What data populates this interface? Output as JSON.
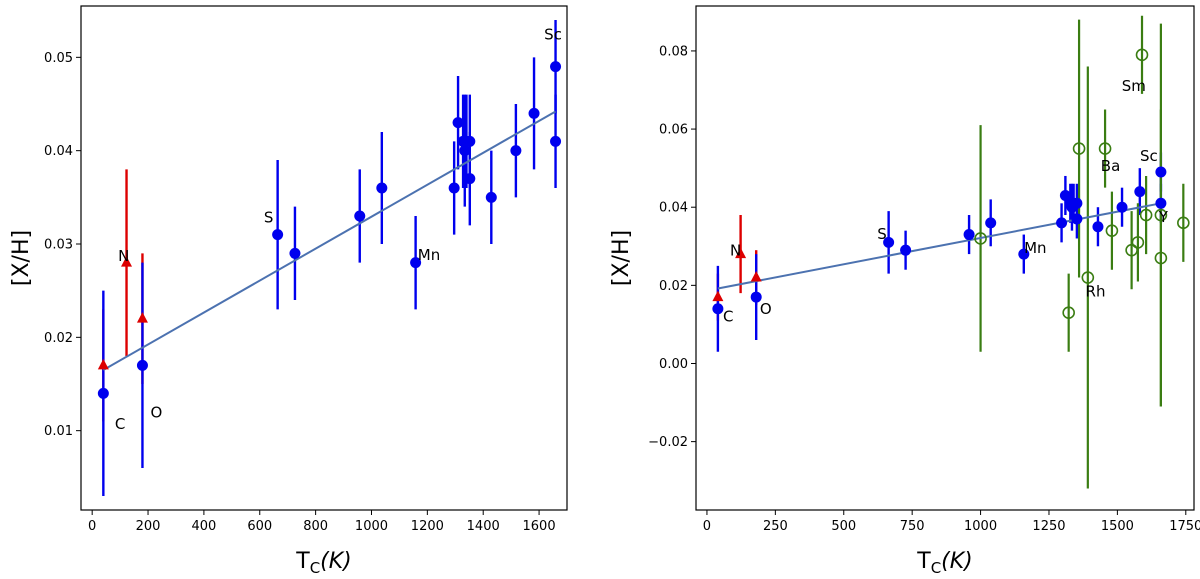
{
  "chart_data": [
    {
      "type": "scatter",
      "xlabel_main": "T",
      "xlabel_sub": "C",
      "xlabel_tail": "(K)",
      "ylabel": "[X/H]",
      "xlim": [
        -40,
        1700
      ],
      "ylim": [
        0.0015,
        0.0555
      ],
      "xticks": [
        0,
        200,
        400,
        600,
        800,
        1000,
        1200,
        1400,
        1600
      ],
      "yticks": [
        0.01,
        0.02,
        0.03,
        0.04,
        0.05
      ],
      "ytick_labels": [
        "0.01",
        "0.02",
        "0.03",
        "0.04",
        "0.05"
      ],
      "fit_line": [
        [
          40,
          0.0165
        ],
        [
          1659,
          0.0442
        ]
      ],
      "colors": {
        "blue": "#0000ee",
        "red": "#dd0000",
        "fit": "#4c72b0"
      },
      "series": [
        {
          "name": "red-triangles",
          "marker": "triangle",
          "points": [
            {
              "x": 40,
              "y": 0.017,
              "err": 0.006
            },
            {
              "x": 123,
              "y": 0.028,
              "err": 0.01
            },
            {
              "x": 180,
              "y": 0.022,
              "err": 0.007
            }
          ]
        },
        {
          "name": "blue-circles",
          "marker": "circle",
          "points": [
            {
              "x": 40,
              "y": 0.014,
              "err": 0.011
            },
            {
              "x": 180,
              "y": 0.017,
              "err": 0.011
            },
            {
              "x": 664,
              "y": 0.031,
              "err": 0.008
            },
            {
              "x": 726,
              "y": 0.029,
              "err": 0.005
            },
            {
              "x": 958,
              "y": 0.033,
              "err": 0.005
            },
            {
              "x": 1037,
              "y": 0.036,
              "err": 0.006
            },
            {
              "x": 1158,
              "y": 0.028,
              "err": 0.005
            },
            {
              "x": 1296,
              "y": 0.036,
              "err": 0.005
            },
            {
              "x": 1310,
              "y": 0.043,
              "err": 0.005
            },
            {
              "x": 1328,
              "y": 0.041,
              "err": 0.005
            },
            {
              "x": 1334,
              "y": 0.04,
              "err": 0.006
            },
            {
              "x": 1340,
              "y": 0.041,
              "err": 0.005
            },
            {
              "x": 1352,
              "y": 0.041,
              "err": 0.005
            },
            {
              "x": 1352,
              "y": 0.037,
              "err": 0.005
            },
            {
              "x": 1429,
              "y": 0.035,
              "err": 0.005
            },
            {
              "x": 1517,
              "y": 0.04,
              "err": 0.005
            },
            {
              "x": 1582,
              "y": 0.044,
              "err": 0.006
            },
            {
              "x": 1659,
              "y": 0.049,
              "err": 0.005
            },
            {
              "x": 1659,
              "y": 0.041,
              "err": 0.005
            }
          ]
        }
      ],
      "annotations": [
        {
          "text": "N",
          "x": 113,
          "y": 0.0282
        },
        {
          "text": "C",
          "x": 100,
          "y": 0.0102
        },
        {
          "text": "O",
          "x": 230,
          "y": 0.0114
        },
        {
          "text": "S",
          "x": 632,
          "y": 0.0323
        },
        {
          "text": "Mn",
          "x": 1206,
          "y": 0.0283
        },
        {
          "text": "Sc",
          "x": 1650,
          "y": 0.0519
        }
      ]
    },
    {
      "type": "scatter",
      "xlabel_main": "T",
      "xlabel_sub": "C",
      "xlabel_tail": "(K)",
      "ylabel": "[X/H]",
      "xlim": [
        -40,
        1780
      ],
      "ylim": [
        -0.0375,
        0.0915
      ],
      "xticks": [
        0,
        250,
        500,
        750,
        1000,
        1250,
        1500,
        1750
      ],
      "yticks": [
        -0.02,
        0.0,
        0.02,
        0.04,
        0.06,
        0.08
      ],
      "ytick_labels": [
        "−0.02",
        "0.00",
        "0.02",
        "0.04",
        "0.06",
        "0.08"
      ],
      "fit_line": [
        [
          40,
          0.0192
        ],
        [
          1659,
          0.041
        ]
      ],
      "colors": {
        "blue": "#0000ee",
        "red": "#dd0000",
        "green": "#3a7d12",
        "fit": "#4c72b0"
      },
      "series": [
        {
          "name": "red-triangles",
          "marker": "triangle",
          "points": [
            {
              "x": 40,
              "y": 0.017,
              "err": 0.006
            },
            {
              "x": 123,
              "y": 0.028,
              "err": 0.01
            },
            {
              "x": 180,
              "y": 0.022,
              "err": 0.007
            }
          ]
        },
        {
          "name": "blue-circles",
          "marker": "circle",
          "points": [
            {
              "x": 40,
              "y": 0.014,
              "err": 0.011
            },
            {
              "x": 180,
              "y": 0.017,
              "err": 0.011
            },
            {
              "x": 664,
              "y": 0.031,
              "err": 0.008
            },
            {
              "x": 726,
              "y": 0.029,
              "err": 0.005
            },
            {
              "x": 958,
              "y": 0.033,
              "err": 0.005
            },
            {
              "x": 1037,
              "y": 0.036,
              "err": 0.006
            },
            {
              "x": 1158,
              "y": 0.028,
              "err": 0.005
            },
            {
              "x": 1296,
              "y": 0.036,
              "err": 0.005
            },
            {
              "x": 1310,
              "y": 0.043,
              "err": 0.005
            },
            {
              "x": 1328,
              "y": 0.041,
              "err": 0.005
            },
            {
              "x": 1334,
              "y": 0.04,
              "err": 0.006
            },
            {
              "x": 1340,
              "y": 0.041,
              "err": 0.005
            },
            {
              "x": 1352,
              "y": 0.041,
              "err": 0.005
            },
            {
              "x": 1352,
              "y": 0.037,
              "err": 0.005
            },
            {
              "x": 1429,
              "y": 0.035,
              "err": 0.005
            },
            {
              "x": 1517,
              "y": 0.04,
              "err": 0.005
            },
            {
              "x": 1582,
              "y": 0.044,
              "err": 0.006
            },
            {
              "x": 1659,
              "y": 0.049,
              "err": 0.005
            },
            {
              "x": 1659,
              "y": 0.041,
              "err": 0.005
            }
          ]
        },
        {
          "name": "green-open-circles",
          "marker": "open-circle",
          "points": [
            {
              "x": 1000,
              "y": 0.032,
              "err": 0.029
            },
            {
              "x": 1322,
              "y": 0.013,
              "err": 0.01
            },
            {
              "x": 1360,
              "y": 0.055,
              "err": 0.033
            },
            {
              "x": 1392,
              "y": 0.022,
              "err": 0.054
            },
            {
              "x": 1455,
              "y": 0.055,
              "err": 0.01
            },
            {
              "x": 1480,
              "y": 0.034,
              "err": 0.01
            },
            {
              "x": 1552,
              "y": 0.029,
              "err": 0.01
            },
            {
              "x": 1575,
              "y": 0.031,
              "err": 0.01
            },
            {
              "x": 1590,
              "y": 0.079,
              "err": 0.01
            },
            {
              "x": 1605,
              "y": 0.038,
              "err": 0.01
            },
            {
              "x": 1659,
              "y": 0.027,
              "err": 0.038
            },
            {
              "x": 1659,
              "y": 0.038,
              "err": 0.049
            },
            {
              "x": 1741,
              "y": 0.036,
              "err": 0.01
            }
          ]
        }
      ],
      "annotations": [
        {
          "text": "N",
          "x": 105,
          "y": 0.0277
        },
        {
          "text": "C",
          "x": 78,
          "y": 0.0107
        },
        {
          "text": "O",
          "x": 215,
          "y": 0.0127
        },
        {
          "text": "S",
          "x": 640,
          "y": 0.0319
        },
        {
          "text": "Mn",
          "x": 1200,
          "y": 0.0283
        },
        {
          "text": "Rh",
          "x": 1420,
          "y": 0.0172
        },
        {
          "text": "Ba",
          "x": 1475,
          "y": 0.0493
        },
        {
          "text": "Sm",
          "x": 1560,
          "y": 0.0698
        },
        {
          "text": "Sc",
          "x": 1615,
          "y": 0.0518
        },
        {
          "text": "Y",
          "x": 1668,
          "y": 0.0362
        }
      ]
    }
  ]
}
